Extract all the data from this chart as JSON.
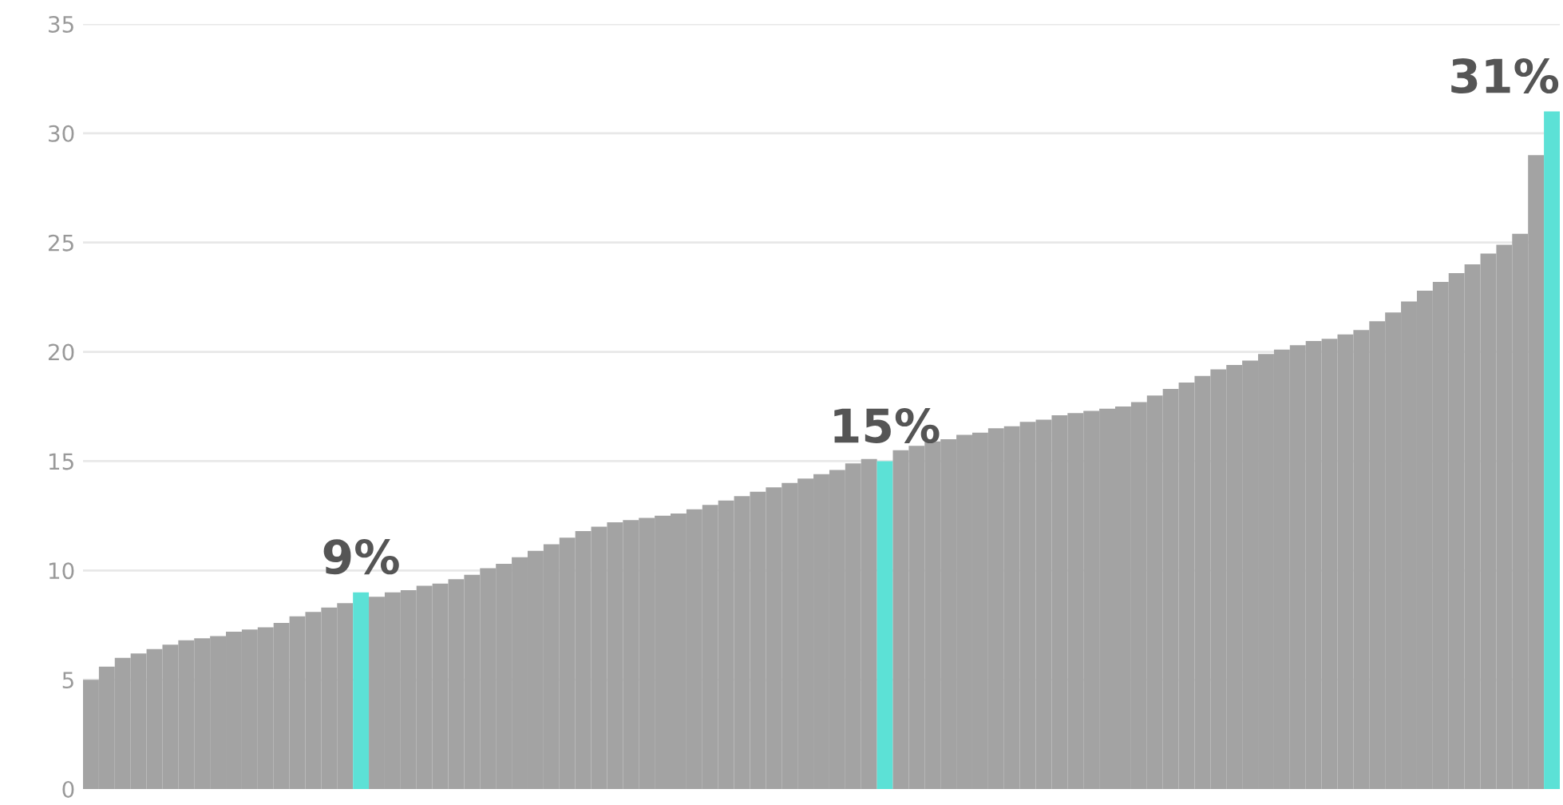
{
  "chart_data": {
    "type": "bar",
    "categories": [
      null,
      null,
      null,
      null,
      null,
      null,
      null,
      null,
      null,
      null,
      null,
      null,
      null,
      null,
      null,
      null,
      null,
      null,
      null,
      null,
      null,
      null,
      null,
      null,
      null,
      null,
      null,
      null,
      null,
      null,
      null,
      null,
      null,
      null,
      null,
      null,
      null,
      null,
      null,
      null,
      null,
      null,
      null,
      null,
      null,
      null,
      null,
      null,
      null,
      null,
      null,
      null,
      null,
      null,
      null,
      null,
      null,
      null,
      null,
      null,
      null,
      null,
      null,
      null,
      null,
      null,
      null,
      null,
      null,
      null,
      null,
      null,
      null,
      null,
      null,
      null,
      null,
      null,
      null,
      null,
      null,
      null,
      null,
      null,
      null,
      null,
      null,
      null,
      null,
      null,
      null,
      null,
      null
    ],
    "values": [
      5.0,
      5.6,
      6.0,
      6.2,
      6.4,
      6.6,
      6.8,
      6.9,
      7.0,
      7.2,
      7.3,
      7.4,
      7.6,
      7.9,
      8.1,
      8.3,
      8.5,
      9,
      8.8,
      9.0,
      9.1,
      9.3,
      9.4,
      9.6,
      9.8,
      10.1,
      10.3,
      10.6,
      10.9,
      11.2,
      11.5,
      11.8,
      12.0,
      12.2,
      12.3,
      12.4,
      12.5,
      12.6,
      12.8,
      13.0,
      13.2,
      13.4,
      13.6,
      13.8,
      14.0,
      14.2,
      14.4,
      14.6,
      14.9,
      15.1,
      15,
      15.5,
      15.7,
      15.9,
      16.0,
      16.2,
      16.3,
      16.5,
      16.6,
      16.8,
      16.9,
      17.1,
      17.2,
      17.3,
      17.4,
      17.5,
      17.7,
      18.0,
      18.3,
      18.6,
      18.9,
      19.2,
      19.4,
      19.6,
      19.9,
      20.1,
      20.3,
      20.5,
      20.6,
      20.8,
      21.0,
      21.4,
      21.8,
      22.3,
      22.8,
      23.2,
      23.6,
      24.0,
      24.5,
      24.9,
      25.4,
      29.0,
      31
    ],
    "value_labels": [
      null,
      null,
      null,
      null,
      null,
      null,
      null,
      null,
      null,
      null,
      null,
      null,
      null,
      null,
      null,
      null,
      null,
      "9%",
      null,
      null,
      null,
      null,
      null,
      null,
      null,
      null,
      null,
      null,
      null,
      null,
      null,
      null,
      null,
      null,
      null,
      null,
      null,
      null,
      null,
      null,
      null,
      null,
      null,
      null,
      null,
      null,
      null,
      null,
      null,
      null,
      "15%",
      null,
      null,
      null,
      null,
      null,
      null,
      null,
      null,
      null,
      null,
      null,
      null,
      null,
      null,
      null,
      null,
      null,
      null,
      null,
      null,
      null,
      null,
      null,
      null,
      null,
      null,
      null,
      null,
      null,
      null,
      null,
      null,
      null,
      null,
      null,
      null,
      null,
      null,
      null,
      null,
      null,
      "31%"
    ],
    "colors": [
      "#a3a3a3",
      "#a3a3a3",
      "#a3a3a3",
      "#a3a3a3",
      "#a3a3a3",
      "#a3a3a3",
      "#a3a3a3",
      "#a3a3a3",
      "#a3a3a3",
      "#a3a3a3",
      "#a3a3a3",
      "#a3a3a3",
      "#a3a3a3",
      "#a3a3a3",
      "#a3a3a3",
      "#a3a3a3",
      "#a3a3a3",
      "#5ce1d6",
      "#a3a3a3",
      "#a3a3a3",
      "#a3a3a3",
      "#a3a3a3",
      "#a3a3a3",
      "#a3a3a3",
      "#a3a3a3",
      "#a3a3a3",
      "#a3a3a3",
      "#a3a3a3",
      "#a3a3a3",
      "#a3a3a3",
      "#a3a3a3",
      "#a3a3a3",
      "#a3a3a3",
      "#a3a3a3",
      "#a3a3a3",
      "#a3a3a3",
      "#a3a3a3",
      "#a3a3a3",
      "#a3a3a3",
      "#a3a3a3",
      "#a3a3a3",
      "#a3a3a3",
      "#a3a3a3",
      "#a3a3a3",
      "#a3a3a3",
      "#a3a3a3",
      "#a3a3a3",
      "#a3a3a3",
      "#a3a3a3",
      "#a3a3a3",
      "#5ce1d6",
      "#a3a3a3",
      "#a3a3a3",
      "#a3a3a3",
      "#a3a3a3",
      "#a3a3a3",
      "#a3a3a3",
      "#a3a3a3",
      "#a3a3a3",
      "#a3a3a3",
      "#a3a3a3",
      "#a3a3a3",
      "#a3a3a3",
      "#a3a3a3",
      "#a3a3a3",
      "#a3a3a3",
      "#a3a3a3",
      "#a3a3a3",
      "#a3a3a3",
      "#a3a3a3",
      "#a3a3a3",
      "#a3a3a3",
      "#a3a3a3",
      "#a3a3a3",
      "#a3a3a3",
      "#a3a3a3",
      "#a3a3a3",
      "#a3a3a3",
      "#a3a3a3",
      "#a3a3a3",
      "#a3a3a3",
      "#a3a3a3",
      "#a3a3a3",
      "#a3a3a3",
      "#a3a3a3",
      "#a3a3a3",
      "#a3a3a3",
      "#a3a3a3",
      "#a3a3a3",
      "#a3a3a3",
      "#a3a3a3",
      "#a3a3a3",
      "#5ce1d6"
    ],
    "ylim": [
      0,
      35
    ],
    "yticks": [
      0,
      5,
      10,
      15,
      20,
      25,
      30,
      35
    ],
    "grid": "y",
    "tick_labels": "y"
  }
}
